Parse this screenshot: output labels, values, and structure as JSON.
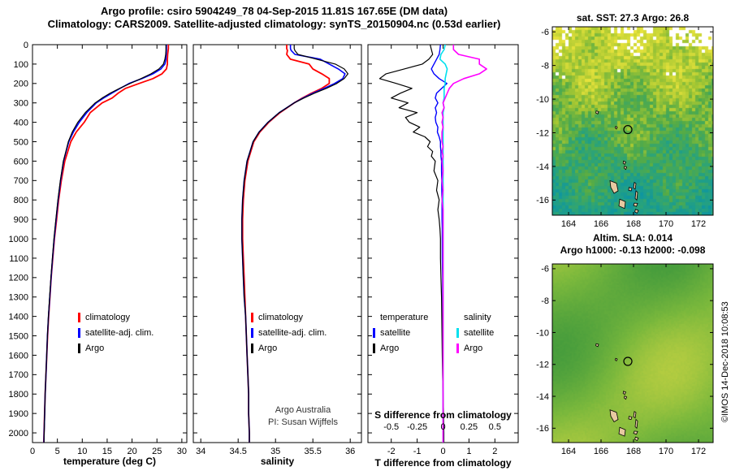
{
  "header": {
    "line1": "Argo profile: csiro 5904249_78 04-Sep-2015 11.81S 167.65E (DM data)",
    "line2": "Climatology: CARS2009. Satellite-adjusted climatology: synTS_20150904.nc (0.53d earlier)"
  },
  "annotation": {
    "line1": "Argo Australia",
    "line2": "PI: Susan Wijffels"
  },
  "credit": "©IMOS 14-Dec-2018 10:08:53",
  "chart_data": [
    {
      "id": "temperature-profile",
      "type": "line",
      "xlabel": "temperature (deg C)",
      "xlim": [
        0,
        31
      ],
      "xticks": [
        0,
        5,
        10,
        15,
        20,
        25,
        30
      ],
      "ylim": [
        0,
        2050
      ],
      "yticks": [
        0,
        100,
        200,
        300,
        400,
        500,
        600,
        700,
        800,
        900,
        1000,
        1100,
        1200,
        1300,
        1400,
        1500,
        1600,
        1700,
        1800,
        1900,
        2000
      ],
      "depth": [
        0,
        10,
        20,
        30,
        50,
        75,
        100,
        125,
        150,
        175,
        200,
        225,
        250,
        275,
        300,
        350,
        400,
        450,
        500,
        550,
        600,
        700,
        800,
        900,
        1000,
        1100,
        1200,
        1300,
        1400,
        1500,
        1600,
        1700,
        1800,
        1900,
        2000,
        2050
      ],
      "series": [
        {
          "name": "climatology",
          "color": "#ff0000",
          "values": [
            27.3,
            27.3,
            27.3,
            27.25,
            27.15,
            27.1,
            27.1,
            26.9,
            26.0,
            24.2,
            21.4,
            18.7,
            17.2,
            16.0,
            14.0,
            11.6,
            10.4,
            8.8,
            7.7,
            7.1,
            6.5,
            5.8,
            5.25,
            4.85,
            4.4,
            4.08,
            3.76,
            3.5,
            3.24,
            3.03,
            2.87,
            2.71,
            2.55,
            2.43,
            2.32,
            2.27
          ]
        },
        {
          "name": "satellite-adj. clim.",
          "color": "#0000ff",
          "values": [
            26.9,
            26.9,
            26.9,
            26.9,
            26.85,
            26.8,
            26.6,
            25.8,
            24.2,
            22.0,
            19.4,
            17.6,
            15.9,
            14.3,
            12.8,
            10.9,
            9.4,
            8.2,
            7.3,
            6.75,
            6.25,
            5.65,
            5.15,
            4.75,
            4.35,
            4.03,
            3.73,
            3.47,
            3.22,
            3.01,
            2.86,
            2.71,
            2.55,
            2.44,
            2.34,
            2.29
          ]
        },
        {
          "name": "Argo",
          "color": "#000000",
          "values": [
            26.8,
            26.8,
            26.8,
            26.8,
            26.75,
            26.6,
            26.3,
            25.4,
            23.8,
            21.8,
            19.6,
            17.5,
            15.6,
            14.0,
            12.6,
            10.6,
            9.1,
            8.0,
            7.2,
            6.7,
            6.2,
            5.6,
            5.1,
            4.7,
            4.3,
            4.0,
            3.7,
            3.45,
            3.2,
            3.0,
            2.85,
            2.7,
            2.55,
            2.45,
            2.35,
            2.3
          ]
        }
      ],
      "legend": [
        {
          "label": "climatology",
          "color": "#ff0000"
        },
        {
          "label": "satellite-adj. clim.",
          "color": "#0000ff"
        },
        {
          "label": "Argo",
          "color": "#000000"
        }
      ]
    },
    {
      "id": "salinity-profile",
      "type": "line",
      "xlabel": "salinity",
      "xlim": [
        33.9,
        36.15
      ],
      "xticks": [
        34,
        34.5,
        35,
        35.5,
        36
      ],
      "ylim": [
        0,
        2050
      ],
      "yticks": [
        0,
        100,
        200,
        300,
        400,
        500,
        600,
        700,
        800,
        900,
        1000,
        1100,
        1200,
        1300,
        1400,
        1500,
        1600,
        1700,
        1800,
        1900,
        2000
      ],
      "depth": [
        0,
        10,
        20,
        30,
        50,
        75,
        100,
        125,
        150,
        175,
        200,
        225,
        250,
        275,
        300,
        350,
        400,
        450,
        500,
        550,
        600,
        700,
        800,
        900,
        1000,
        1100,
        1200,
        1300,
        1400,
        1500,
        1600,
        1700,
        1800,
        1900,
        2000,
        2050
      ],
      "series": [
        {
          "name": "climatology",
          "color": "#ff0000",
          "values": [
            35.15,
            35.15,
            35.15,
            35.16,
            35.15,
            35.2,
            35.45,
            35.5,
            35.62,
            35.72,
            35.72,
            35.62,
            35.48,
            35.36,
            35.25,
            35.06,
            34.91,
            34.79,
            34.71,
            34.67,
            34.63,
            34.59,
            34.57,
            34.56,
            34.56,
            34.57,
            34.58,
            34.59,
            34.6,
            34.61,
            34.62,
            34.63,
            34.64,
            34.64,
            34.65,
            34.65
          ]
        },
        {
          "name": "satellite-adj. clim.",
          "color": "#0000ff",
          "values": [
            35.2,
            35.2,
            35.2,
            35.21,
            35.26,
            35.6,
            35.72,
            35.84,
            35.93,
            35.9,
            35.79,
            35.65,
            35.5,
            35.37,
            35.25,
            35.05,
            34.9,
            34.78,
            34.7,
            34.66,
            34.62,
            34.58,
            34.56,
            34.55,
            34.55,
            34.56,
            34.57,
            34.58,
            34.6,
            34.61,
            34.62,
            34.63,
            34.64,
            34.64,
            34.65,
            34.65
          ]
        },
        {
          "name": "Argo",
          "color": "#000000",
          "values": [
            35.25,
            35.25,
            35.25,
            35.26,
            35.3,
            35.55,
            35.8,
            35.92,
            35.97,
            35.92,
            35.82,
            35.68,
            35.52,
            35.38,
            35.25,
            35.05,
            34.9,
            34.78,
            34.7,
            34.66,
            34.62,
            34.58,
            34.56,
            34.55,
            34.55,
            34.56,
            34.57,
            34.58,
            34.6,
            34.61,
            34.62,
            34.63,
            34.64,
            34.64,
            34.65,
            34.65
          ]
        }
      ],
      "legend": [
        {
          "label": "climatology",
          "color": "#ff0000"
        },
        {
          "label": "satellite-adj. clim.",
          "color": "#0000ff"
        },
        {
          "label": "Argo",
          "color": "#000000"
        }
      ]
    },
    {
      "id": "difference-profile",
      "type": "line",
      "xlabel": "T difference from climatology",
      "s_axis_label": "S difference from climatology",
      "xlim": [
        -2.9,
        2.9
      ],
      "xticks": [
        -2,
        -1,
        0,
        1,
        2
      ],
      "s_ticks": [
        -0.5,
        -0.25,
        0,
        0.25,
        0.5
      ],
      "s_scale": 4,
      "ylim": [
        0,
        2050
      ],
      "yticks": [
        0,
        100,
        200,
        300,
        400,
        500,
        600,
        700,
        800,
        900,
        1000,
        1100,
        1200,
        1300,
        1400,
        1500,
        1600,
        1700,
        1800,
        1900,
        2000
      ],
      "depth": [
        0,
        25,
        50,
        75,
        100,
        125,
        150,
        175,
        200,
        225,
        250,
        275,
        300,
        325,
        350,
        375,
        400,
        425,
        450,
        475,
        500,
        525,
        550,
        575,
        600,
        650,
        700,
        750,
        800,
        850,
        900,
        950,
        1000,
        1100,
        1200,
        1300,
        1400,
        1500,
        1600,
        1700,
        1800,
        1900,
        2000,
        2050
      ],
      "series": [
        {
          "name": "T satellite",
          "axis": "T",
          "color": "#0000ff",
          "values": [
            -0.1,
            -0.12,
            -0.15,
            -0.25,
            -0.35,
            -0.45,
            -0.35,
            -0.15,
            0.15,
            -0.05,
            -0.25,
            -0.3,
            -0.2,
            -0.3,
            -0.25,
            -0.3,
            -0.28,
            -0.2,
            -0.22,
            -0.15,
            -0.1,
            -0.1,
            -0.08,
            -0.08,
            -0.06,
            -0.06,
            -0.05,
            -0.05,
            -0.04,
            -0.04,
            -0.04,
            -0.03,
            -0.03,
            -0.03,
            -0.02,
            -0.02,
            -0.02,
            -0.01,
            -0.01,
            -0.01,
            0,
            0,
            0.01,
            0.01
          ]
        },
        {
          "name": "T Argo",
          "axis": "T",
          "color": "#000000",
          "values": [
            -0.5,
            -0.45,
            -0.4,
            -0.55,
            -0.8,
            -1.5,
            -2.2,
            -2.45,
            -1.8,
            -1.2,
            -1.65,
            -2.0,
            -1.35,
            -1.7,
            -1.0,
            -1.45,
            -1.3,
            -0.9,
            -1.15,
            -0.7,
            -0.5,
            -0.6,
            -0.4,
            -0.45,
            -0.3,
            -0.35,
            -0.2,
            -0.25,
            -0.15,
            -0.2,
            -0.15,
            -0.12,
            -0.1,
            -0.1,
            -0.08,
            -0.06,
            -0.05,
            -0.04,
            -0.03,
            -0.02,
            0,
            0.02,
            0.03,
            0.03
          ]
        },
        {
          "name": "S satellite",
          "axis": "S",
          "color": "#00e0ee",
          "values": [
            0.02,
            0.01,
            -0.02,
            -0.03,
            0.02,
            0.04,
            0.03,
            0.02,
            0.02,
            0.01,
            0.01,
            0.01,
            0,
            0.01,
            0,
            0,
            0,
            0,
            0,
            0,
            0,
            0,
            0,
            0,
            0,
            0,
            0,
            0,
            0,
            0,
            0,
            0,
            0,
            0,
            0,
            0,
            0,
            0,
            0,
            0,
            0,
            0,
            0,
            0
          ]
        },
        {
          "name": "S Argo",
          "axis": "S",
          "color": "#ff00ff",
          "values": [
            0.1,
            0.1,
            0.15,
            0.35,
            0.35,
            0.42,
            0.35,
            0.2,
            0.1,
            0.06,
            0.04,
            0.02,
            0,
            0.01,
            -0.01,
            0,
            -0.01,
            0,
            -0.01,
            -0.01,
            -0.01,
            0,
            -0.01,
            0,
            -0.01,
            0,
            -0.01,
            0,
            -0.01,
            0,
            0,
            0,
            0,
            0,
            0,
            0,
            0,
            0,
            0,
            0,
            0,
            0,
            0,
            0
          ]
        }
      ],
      "legend_t": {
        "header": "temperature",
        "items": [
          {
            "label": "satellite",
            "color": "#0000ff"
          },
          {
            "label": "Argo",
            "color": "#000000"
          }
        ]
      },
      "legend_s": {
        "header": "salinity",
        "items": [
          {
            "label": "satellite",
            "color": "#00e0ee"
          },
          {
            "label": "Argo",
            "color": "#ff00ff"
          }
        ]
      }
    },
    {
      "id": "sst-map",
      "type": "heatmap",
      "title": "sat. SST: 27.3 Argo: 26.8",
      "stats": {
        "sat_sst": 27.3,
        "argo_sst": 26.8
      },
      "xticks": [
        164,
        166,
        168,
        170,
        172
      ],
      "yticks": [
        -6,
        -8,
        -10,
        -12,
        -14,
        -16
      ],
      "lon_range": [
        163,
        172.9
      ],
      "lat_range": [
        -5.7,
        -16.9
      ],
      "marker": {
        "lon": 167.65,
        "lat": -11.81
      }
    },
    {
      "id": "sla-map",
      "type": "heatmap",
      "title_line1": "Altim. SLA: 0.014",
      "title_line2": "Argo h1000: -0.13 h2000: -0.098",
      "stats": {
        "sla": 0.014,
        "h1000": -0.13,
        "h2000": -0.098
      },
      "xticks": [
        164,
        166,
        168,
        170,
        172
      ],
      "yticks": [
        -6,
        -8,
        -10,
        -12,
        -14,
        -16
      ],
      "lon_range": [
        163,
        172.9
      ],
      "lat_range": [
        -5.7,
        -16.9
      ],
      "marker": {
        "lon": 167.65,
        "lat": -11.81
      }
    }
  ]
}
